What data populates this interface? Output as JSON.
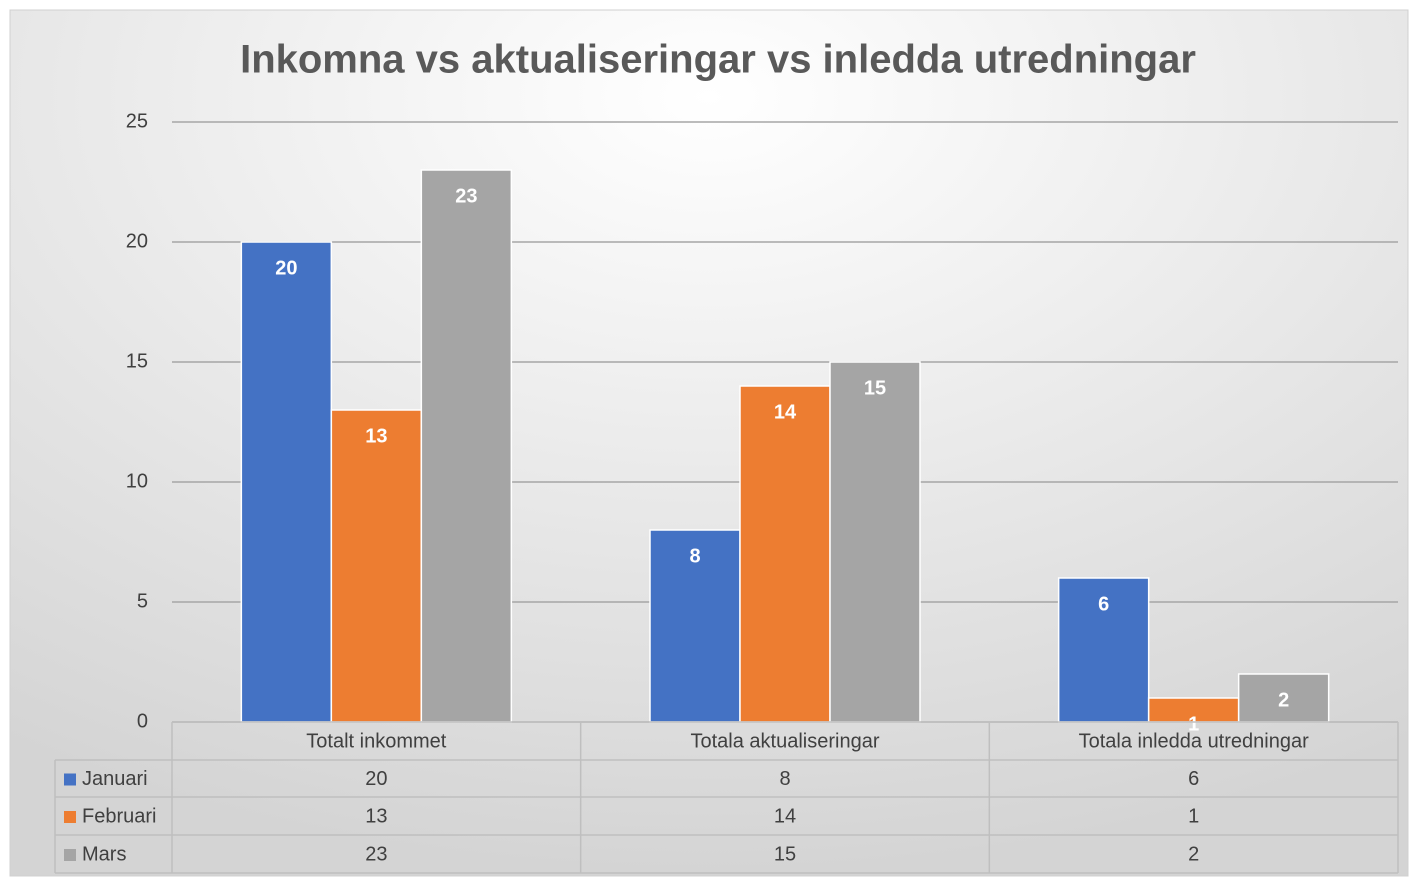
{
  "chart_data": {
    "type": "bar",
    "title": "Inkomna vs aktualiseringar vs inledda utredningar",
    "categories": [
      "Totalt inkommet",
      "Totala aktualiseringar",
      "Totala inledda utredningar"
    ],
    "series": [
      {
        "name": "Januari",
        "color": "#4472c4",
        "values": [
          20,
          8,
          6
        ]
      },
      {
        "name": "Februari",
        "color": "#ed7d31",
        "values": [
          13,
          14,
          1
        ]
      },
      {
        "name": "Mars",
        "color": "#a5a5a5",
        "values": [
          23,
          15,
          2
        ]
      }
    ],
    "ylim": [
      0,
      25
    ],
    "yticks": [
      0,
      5,
      10,
      15,
      20,
      25
    ],
    "grid": true,
    "data_table": true
  }
}
